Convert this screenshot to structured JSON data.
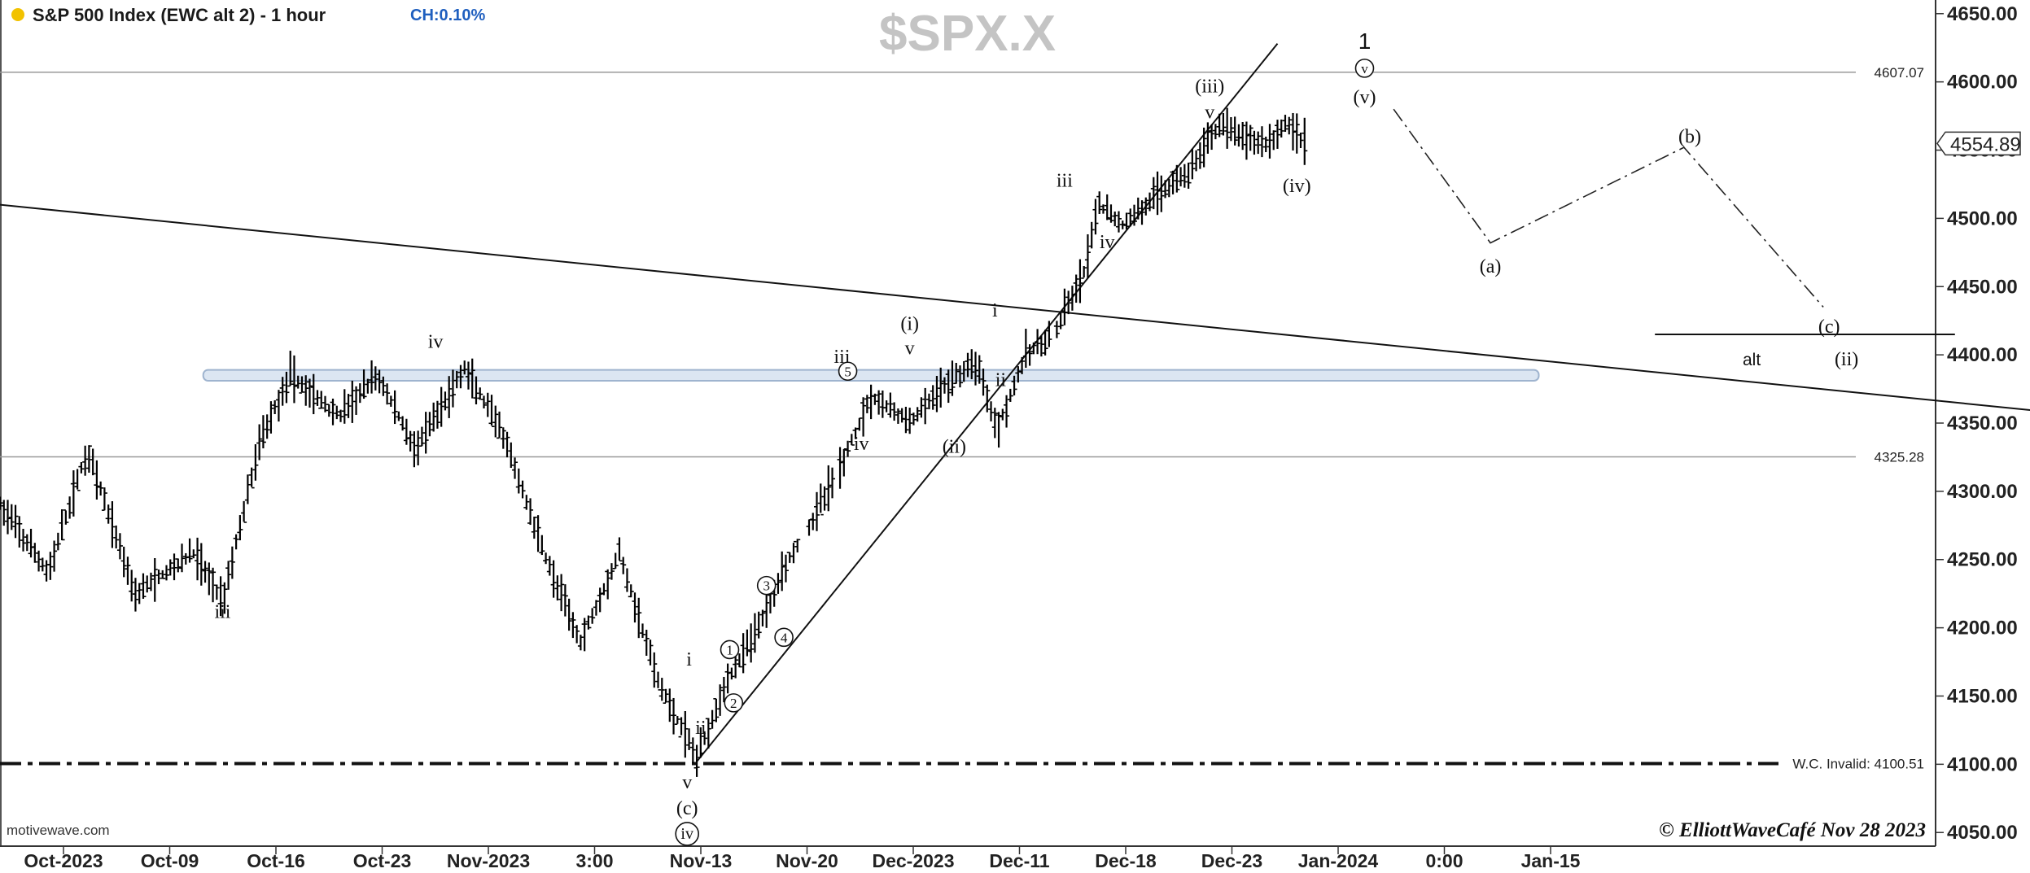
{
  "header": {
    "title": "S&P 500 Index (EWC alt 2) - 1 hour",
    "change": "CH:0.10%",
    "status_dot_color": "#f2c200"
  },
  "watermark": "$SPX.X",
  "credit_left": "motivewave.com",
  "credit_right": "© ElliottWaveCafé Nov 28 2023",
  "colors": {
    "accent": "#1f5fbf",
    "zone_fill": "#dce6f2",
    "zone_stroke": "#9fb4cf",
    "wave": "#111111",
    "bars": "#000000"
  },
  "chart_data": {
    "type": "ohlc",
    "ylim": [
      4040,
      4660
    ],
    "price_ticks": [
      "4050.00",
      "4100.00",
      "4150.00",
      "4200.00",
      "4250.00",
      "4300.00",
      "4350.00",
      "4400.00",
      "4450.00",
      "4500.00",
      "4550.00",
      "4600.00",
      "4650.00"
    ],
    "date_ticks": [
      "Oct-2023",
      "Oct-09",
      "Oct-16",
      "Oct-23",
      "Nov-2023",
      "3:00",
      "Nov-13",
      "Nov-20",
      "Dec-2023",
      "Dec-11",
      "Dec-18",
      "Dec-23",
      "Jan-2024",
      "0:00",
      "Jan-15"
    ],
    "last_price": "4554.89",
    "level_lines": [
      {
        "value": 4607.07,
        "label": "4607.07"
      },
      {
        "value": 4325.28,
        "label": "4325.28"
      },
      {
        "value": 4100.51,
        "label": "W.C. Invalid: 4100.51"
      }
    ],
    "price_path": [
      [
        0,
        4290
      ],
      [
        2.5,
        4240
      ],
      [
        4.5,
        4330
      ],
      [
        7,
        4225
      ],
      [
        10,
        4255
      ],
      [
        11.5,
        4220
      ],
      [
        13.5,
        4340
      ],
      [
        15,
        4385
      ],
      [
        17.5,
        4355
      ],
      [
        19.5,
        4385
      ],
      [
        21.5,
        4330
      ],
      [
        24,
        4390
      ],
      [
        26,
        4340
      ],
      [
        28.5,
        4240
      ],
      [
        30,
        4190
      ],
      [
        32,
        4255
      ],
      [
        34,
        4160
      ],
      [
        36,
        4105
      ],
      [
        37.5,
        4160
      ],
      [
        39,
        4195
      ],
      [
        40.5,
        4245
      ],
      [
        41.8,
        4275
      ],
      [
        43.5,
        4320
      ],
      [
        45,
        4370
      ],
      [
        47,
        4350
      ],
      [
        49,
        4380
      ],
      [
        50.5,
        4395
      ],
      [
        51.5,
        4345
      ],
      [
        53,
        4400
      ],
      [
        54.5,
        4415
      ],
      [
        56,
        4460
      ],
      [
        56.8,
        4510
      ],
      [
        58,
        4495
      ],
      [
        60,
        4520
      ],
      [
        61.5,
        4535
      ],
      [
        63,
        4570
      ],
      [
        64,
        4560
      ],
      [
        65.5,
        4555
      ],
      [
        66.5,
        4570
      ],
      [
        67.5,
        4554.89
      ]
    ],
    "wave_labels": [
      {
        "text": "iii",
        "x": 11.5,
        "y": 4212
      },
      {
        "text": "iv",
        "x": 22.5,
        "y": 4410
      },
      {
        "text": "i",
        "x": 35.6,
        "y": 4177
      },
      {
        "text": "ii",
        "x": 36.2,
        "y": 4127
      },
      {
        "text": "v",
        "x": 35.5,
        "y": 4087
      },
      {
        "text": "(c)",
        "x": 35.5,
        "y": 4068
      },
      {
        "text": "iii",
        "x": 43.5,
        "y": 4399
      },
      {
        "text": "iv",
        "x": 44.5,
        "y": 4335
      },
      {
        "text": "v",
        "x": 47,
        "y": 4405
      },
      {
        "text": "(i)",
        "x": 47,
        "y": 4423
      },
      {
        "text": "(ii)",
        "x": 49.3,
        "y": 4333
      },
      {
        "text": "i",
        "x": 51.4,
        "y": 4433
      },
      {
        "text": "ii",
        "x": 51.7,
        "y": 4382
      },
      {
        "text": "iii",
        "x": 55,
        "y": 4528
      },
      {
        "text": "iv",
        "x": 57.2,
        "y": 4483
      },
      {
        "text": "v",
        "x": 62.5,
        "y": 4578
      },
      {
        "text": "(iii)",
        "x": 62.5,
        "y": 4597
      },
      {
        "text": "(iv)",
        "x": 67,
        "y": 4524
      },
      {
        "text": "(v)",
        "x": 70.5,
        "y": 4589
      },
      {
        "text": "1",
        "x": 70.5,
        "y": 4629
      },
      {
        "text": "(a)",
        "x": 77,
        "y": 4465
      },
      {
        "text": "(b)",
        "x": 87.3,
        "y": 4560
      },
      {
        "text": "(c)",
        "x": 94.5,
        "y": 4421
      },
      {
        "text": "(ii)",
        "x": 95.4,
        "y": 4397
      }
    ],
    "circled_labels": [
      {
        "text": "iv",
        "x": 35.5,
        "y": 4049
      },
      {
        "text": "v",
        "x": 70.5,
        "y": 4610
      },
      {
        "text": "1",
        "x": 37.7,
        "y": 4184
      },
      {
        "text": "2",
        "x": 37.9,
        "y": 4145
      },
      {
        "text": "3",
        "x": 39.6,
        "y": 4231
      },
      {
        "text": "4",
        "x": 40.5,
        "y": 4193
      },
      {
        "text": "5",
        "x": 43.8,
        "y": 4388
      }
    ],
    "alt_label": {
      "text": "alt",
      "x": 90.5,
      "y": 4397
    },
    "projection_path": [
      [
        72,
        4580
      ],
      [
        77,
        4482
      ],
      [
        87,
        4552
      ],
      [
        94.2,
        4435
      ]
    ],
    "resistance_zone": [
      4381,
      4389
    ],
    "trendlines": [
      {
        "from": [
          0,
          4510
        ],
        "to": [
          115,
          4345
        ]
      },
      {
        "from": [
          36,
          4102
        ],
        "to": [
          66,
          4628
        ]
      }
    ],
    "alt_target_line": {
      "from": [
        85.5,
        4415
      ],
      "to": [
        101,
        4415
      ]
    }
  }
}
